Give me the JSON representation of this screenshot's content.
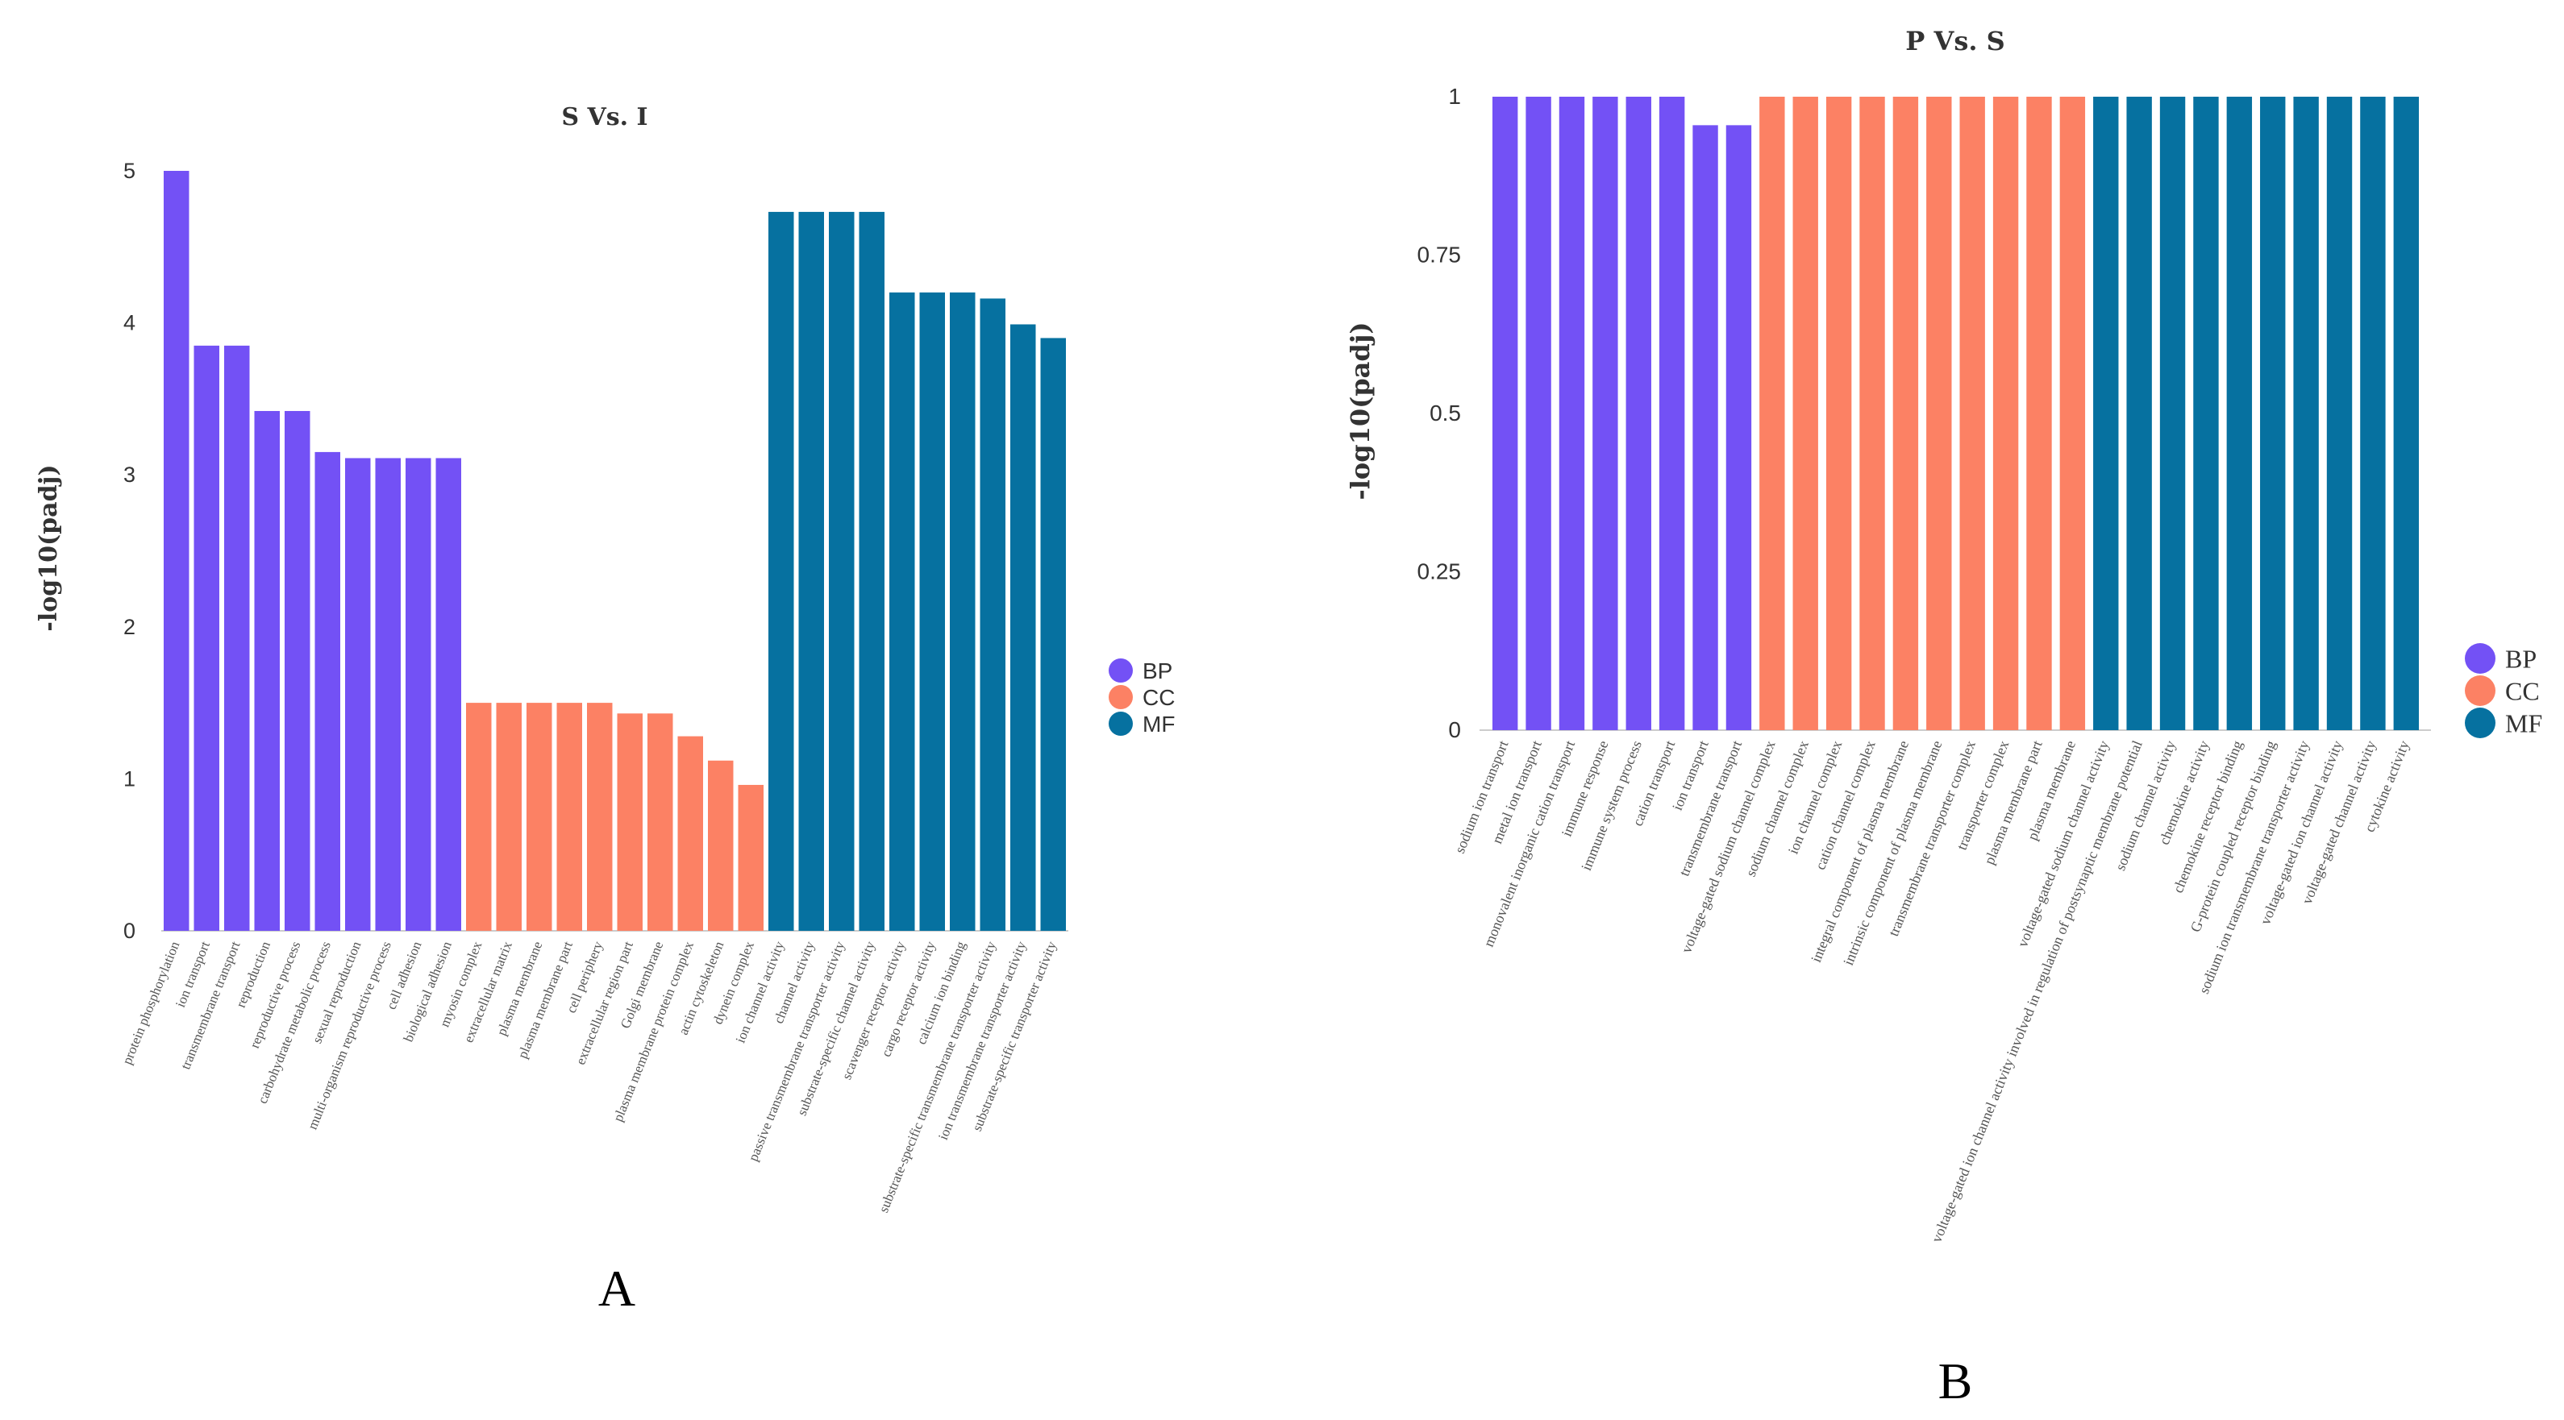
{
  "colors": {
    "BP": "#7351F5",
    "CC": "#FC8164",
    "MF": "#0671A0",
    "axis": "#cccccc"
  },
  "chart_data": [
    {
      "panel": "A",
      "type": "bar",
      "title": "S Vs. I",
      "xlabel": "",
      "ylabel": "-log10(padj)",
      "ylim": [
        0,
        5
      ],
      "yticks": [
        "0",
        "1",
        "2",
        "3",
        "4",
        "5"
      ],
      "legend": [
        "BP",
        "CC",
        "MF"
      ],
      "categories": [
        "protein phosphorylation",
        "ion transport",
        "transmembrane transport",
        "reproduction",
        "reproductive process",
        "carbohydrate metabolic process",
        "sexual reproduction",
        "multi-organism reproductive process",
        "cell adhesion",
        "biological adhesion",
        "myosin complex",
        "extracellular matrix",
        "plasma membrane",
        "plasma membrane part",
        "cell periphery",
        "extracellular region part",
        "Golgi membrane",
        "plasma membrane protein complex",
        "actin cytoskeleton",
        "dynein complex",
        "ion channel activity",
        "channel activity",
        "passive transmembrane transporter activity",
        "substrate-specific channel activity",
        "scavenger receptor activity",
        "cargo receptor activity",
        "calcium ion binding",
        "substrate-specific transmembrane transporter activity",
        "ion transmembrane transporter activity",
        "substrate-specific transporter activity"
      ],
      "groups": [
        "BP",
        "BP",
        "BP",
        "BP",
        "BP",
        "BP",
        "BP",
        "BP",
        "BP",
        "BP",
        "CC",
        "CC",
        "CC",
        "CC",
        "CC",
        "CC",
        "CC",
        "CC",
        "CC",
        "CC",
        "MF",
        "MF",
        "MF",
        "MF",
        "MF",
        "MF",
        "MF",
        "MF",
        "MF",
        "MF"
      ],
      "values": [
        5.0,
        3.85,
        3.85,
        3.42,
        3.42,
        3.15,
        3.11,
        3.11,
        3.11,
        3.11,
        1.5,
        1.5,
        1.5,
        1.5,
        1.5,
        1.43,
        1.43,
        1.28,
        1.12,
        0.96,
        4.73,
        4.73,
        4.73,
        4.73,
        4.2,
        4.2,
        4.2,
        4.16,
        3.99,
        3.9
      ]
    },
    {
      "panel": "B",
      "type": "bar",
      "title": "P Vs. S",
      "xlabel": "",
      "ylabel": "-log10(padj)",
      "ylim": [
        0,
        1
      ],
      "yticks": [
        "0",
        "0.25",
        "0.5",
        "0.75",
        "1"
      ],
      "legend": [
        "BP",
        "CC",
        "MF"
      ],
      "categories": [
        "sodium ion transport",
        "metal ion transport",
        "monovalent inorganic cation transport",
        "immune response",
        "immune system process",
        "cation transport",
        "ion transport",
        "transmembrane transport",
        "voltage-gated sodium channel complex",
        "sodium channel complex",
        "ion channel complex",
        "cation channel complex",
        "integral component of plasma membrane",
        "intrinsic component of plasma membrane",
        "transmembrane transporter complex",
        "transporter complex",
        "plasma membrane part",
        "plasma membrane",
        "voltage-gated sodium channel activity",
        "voltage-gated ion channel activity involved in regulation of postsynaptic membrane potential",
        "sodium channel activity",
        "chemokine activity",
        "chemokine receptor binding",
        "G-protein coupled receptor binding",
        "sodium ion transmembrane transporter activity",
        "voltage-gated ion channel activity",
        "voltage-gated channel activity",
        "cytokine activity"
      ],
      "groups": [
        "BP",
        "BP",
        "BP",
        "BP",
        "BP",
        "BP",
        "BP",
        "BP",
        "CC",
        "CC",
        "CC",
        "CC",
        "CC",
        "CC",
        "CC",
        "CC",
        "CC",
        "CC",
        "MF",
        "MF",
        "MF",
        "MF",
        "MF",
        "MF",
        "MF",
        "MF",
        "MF",
        "MF"
      ],
      "values": [
        1,
        1,
        1,
        1,
        1,
        1,
        0.955,
        0.955,
        1,
        1,
        1,
        1,
        1,
        1,
        1,
        1,
        1,
        1,
        1,
        1,
        1,
        1,
        1,
        1,
        1,
        1,
        1,
        1
      ]
    }
  ]
}
